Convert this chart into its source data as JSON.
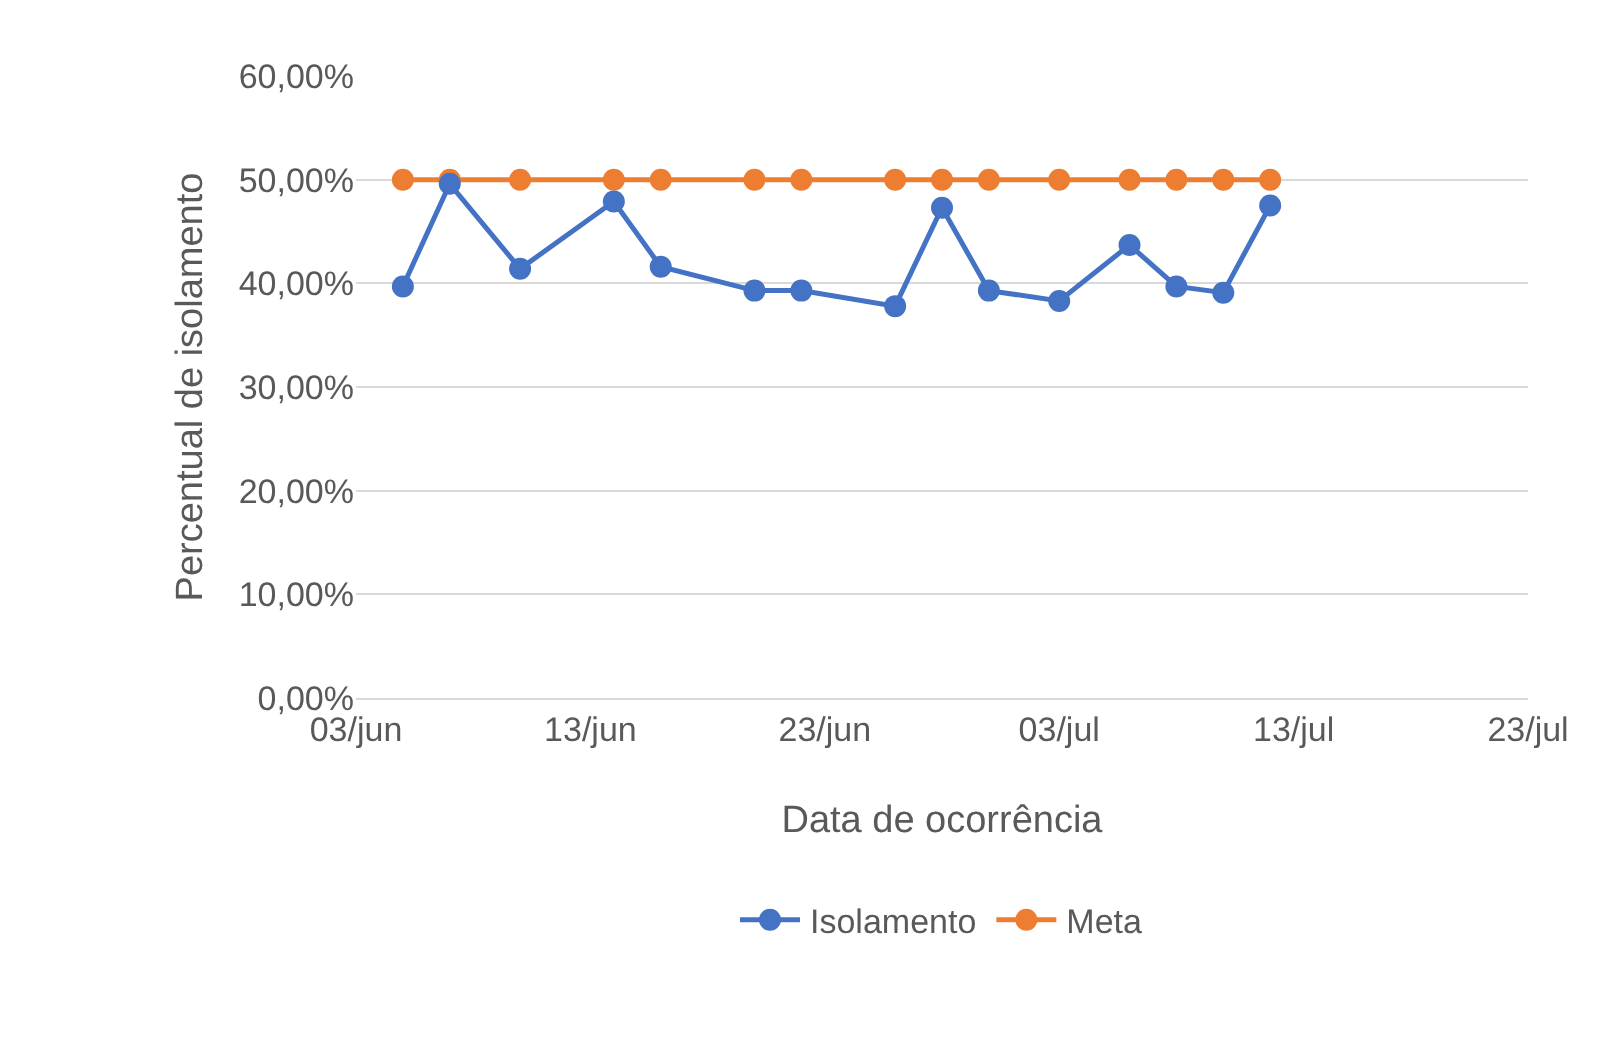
{
  "chart_data": {
    "type": "line",
    "xlabel": "Data de ocorrência",
    "ylabel": "Percentual de isolamento",
    "x": [
      "--06-05",
      "--06-07",
      "--06-10",
      "--06-14",
      "--06-16",
      "--06-20",
      "--06-22",
      "--06-26",
      "--06-28",
      "--06-30",
      "--07-03",
      "--07-06",
      "--07-08",
      "--07-10",
      "--07-12"
    ],
    "series": [
      {
        "name": "Isolamento",
        "color": "#4472c4",
        "values": [
          39.7,
          49.6,
          41.4,
          47.9,
          41.6,
          39.3,
          39.3,
          37.8,
          47.3,
          39.3,
          38.3,
          43.7,
          39.7,
          39.1,
          47.5
        ]
      },
      {
        "name": "Meta",
        "color": "#ed7d31",
        "values": [
          50,
          50,
          50,
          50,
          50,
          50,
          50,
          50,
          50,
          50,
          50,
          50,
          50,
          50,
          50
        ]
      }
    ],
    "xlim": [
      "--06-03",
      "--07-23"
    ],
    "xticks": [
      {
        "value": "--06-03",
        "label": "03/jun"
      },
      {
        "value": "--06-13",
        "label": "13/jun"
      },
      {
        "value": "--06-23",
        "label": "23/jun"
      },
      {
        "value": "--07-03",
        "label": "03/jul"
      },
      {
        "value": "--07-13",
        "label": "13/jul"
      },
      {
        "value": "--07-23",
        "label": "23/jul"
      }
    ],
    "ylim": [
      0,
      60
    ],
    "yticks": [
      {
        "value": 0,
        "label": "0,00%"
      },
      {
        "value": 10,
        "label": "10,00%"
      },
      {
        "value": 20,
        "label": "20,00%"
      },
      {
        "value": 30,
        "label": "30,00%"
      },
      {
        "value": 40,
        "label": "40,00%"
      },
      {
        "value": 50,
        "label": "50,00%"
      },
      {
        "value": 60,
        "label": "60,00%"
      }
    ],
    "grid": "y",
    "legend": "bottom",
    "marker": "circle",
    "line_style": "solid"
  }
}
